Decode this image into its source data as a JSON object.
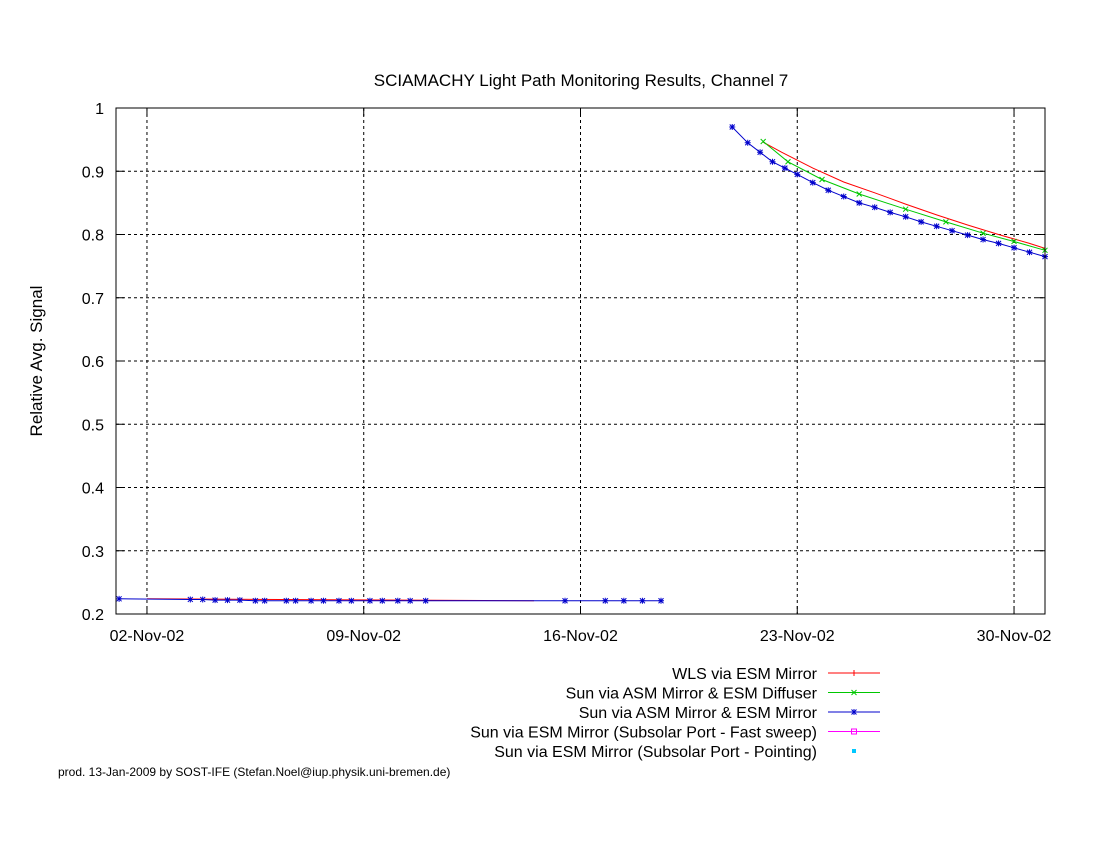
{
  "chart_data": {
    "type": "line",
    "title": "SCIAMACHY Light Path Monitoring Results, Channel 7",
    "xlabel": "",
    "ylabel": "Relative Avg. Signal",
    "ylim": [
      0.2,
      1.0
    ],
    "yticks": [
      "0.2",
      "0.3",
      "0.4",
      "0.5",
      "0.6",
      "0.7",
      "0.8",
      "0.9",
      "1"
    ],
    "xlim": [
      "2002-11-01",
      "2002-12-01"
    ],
    "xticks": [
      {
        "date": "2002-11-02",
        "label": "02-Nov-02"
      },
      {
        "date": "2002-11-09",
        "label": "09-Nov-02"
      },
      {
        "date": "2002-11-16",
        "label": "16-Nov-02"
      },
      {
        "date": "2002-11-23",
        "label": "23-Nov-02"
      },
      {
        "date": "2002-11-30",
        "label": "30-Nov-02"
      }
    ],
    "grid": true,
    "legend_position": "bottom-right",
    "series": [
      {
        "name": "WLS via ESM Mirror",
        "color": "#ff0000",
        "marker": "plus",
        "show_markers": false,
        "segments": [
          [
            [
              "2002-11-02",
              0.224
            ],
            [
              "2002-11-14.5",
              0.221
            ]
          ],
          [
            [
              "2002-11-21.9",
              0.946
            ],
            [
              "2002-11-22.5",
              0.93
            ],
            [
              "2002-11-23.5",
              0.905
            ],
            [
              "2002-11-24.5",
              0.883
            ],
            [
              "2002-11-25.5",
              0.866
            ],
            [
              "2002-11-26.5",
              0.848
            ],
            [
              "2002-11-27.5",
              0.831
            ],
            [
              "2002-11-28.5",
              0.815
            ],
            [
              "2002-11-29.5",
              0.8
            ],
            [
              "2002-11-30.5",
              0.786
            ],
            [
              "2002-12-01",
              0.778
            ]
          ]
        ]
      },
      {
        "name": "Sun via ASM Mirror & ESM Diffuser",
        "color": "#00c800",
        "marker": "cross",
        "show_markers": true,
        "segments": [
          [
            [
              "2002-11-21.9",
              0.947
            ],
            [
              "2002-11-22.7",
              0.915
            ],
            [
              "2002-11-23.8",
              0.887
            ],
            [
              "2002-11-25",
              0.864
            ],
            [
              "2002-11-26.5",
              0.84
            ],
            [
              "2002-11-27.8",
              0.82
            ],
            [
              "2002-11-29",
              0.802
            ],
            [
              "2002-11-30",
              0.789
            ],
            [
              "2002-12-01",
              0.775
            ]
          ]
        ]
      },
      {
        "name": "Sun via ASM Mirror & ESM Mirror",
        "color": "#0000cc",
        "marker": "star",
        "show_markers": true,
        "segments": [
          [
            [
              "2002-11-01.1",
              0.224
            ],
            [
              "2002-11-03.4",
              0.223
            ],
            [
              "2002-11-03.8",
              0.223
            ],
            [
              "2002-11-04.2",
              0.222
            ],
            [
              "2002-11-04.6",
              0.222
            ],
            [
              "2002-11-05.0",
              0.222
            ],
            [
              "2002-11-05.5",
              0.221
            ],
            [
              "2002-11-05.8",
              0.221
            ],
            [
              "2002-11-06.5",
              0.221
            ],
            [
              "2002-11-06.8",
              0.221
            ],
            [
              "2002-11-07.3",
              0.221
            ],
            [
              "2002-11-07.7",
              0.221
            ],
            [
              "2002-11-08.2",
              0.221
            ],
            [
              "2002-11-08.6",
              0.221
            ],
            [
              "2002-11-09.2",
              0.221
            ],
            [
              "2002-11-09.6",
              0.221
            ],
            [
              "2002-11-10.1",
              0.221
            ],
            [
              "2002-11-10.5",
              0.221
            ],
            [
              "2002-11-11.0",
              0.221
            ],
            [
              "2002-11-15.5",
              0.221
            ],
            [
              "2002-11-16.8",
              0.221
            ],
            [
              "2002-11-17.4",
              0.221
            ],
            [
              "2002-11-18.0",
              0.221
            ],
            [
              "2002-11-18.6",
              0.221
            ]
          ],
          [
            [
              "2002-11-20.9",
              0.97
            ],
            [
              "2002-11-21.4",
              0.945
            ],
            [
              "2002-11-21.8",
              0.93
            ],
            [
              "2002-11-22.2",
              0.915
            ],
            [
              "2002-11-22.6",
              0.905
            ],
            [
              "2002-11-23.0",
              0.895
            ],
            [
              "2002-11-23.5",
              0.882
            ],
            [
              "2002-11-24.0",
              0.87
            ],
            [
              "2002-11-24.5",
              0.86
            ],
            [
              "2002-11-25.0",
              0.85
            ],
            [
              "2002-11-25.5",
              0.843
            ],
            [
              "2002-11-26.0",
              0.835
            ],
            [
              "2002-11-26.5",
              0.828
            ],
            [
              "2002-11-27.0",
              0.82
            ],
            [
              "2002-11-27.5",
              0.813
            ],
            [
              "2002-11-28.0",
              0.806
            ],
            [
              "2002-11-28.5",
              0.799
            ],
            [
              "2002-11-29.0",
              0.792
            ],
            [
              "2002-11-29.5",
              0.786
            ],
            [
              "2002-11-30.0",
              0.779
            ],
            [
              "2002-11-30.5",
              0.772
            ],
            [
              "2002-12-01",
              0.765
            ]
          ]
        ]
      },
      {
        "name": "Sun via ESM Mirror (Subsolar Port - Fast sweep)",
        "color": "#ff00ff",
        "marker": "square",
        "show_markers": false,
        "segments": []
      },
      {
        "name": "Sun via ESM Mirror (Subsolar Port - Pointing)",
        "color": "#00c8ff",
        "marker": "dot",
        "show_markers": false,
        "segments": []
      }
    ]
  },
  "footer": {
    "credit": "prod. 13-Jan-2009 by SOST-IFE (Stefan.Noel@iup.physik.uni-bremen.de)"
  }
}
